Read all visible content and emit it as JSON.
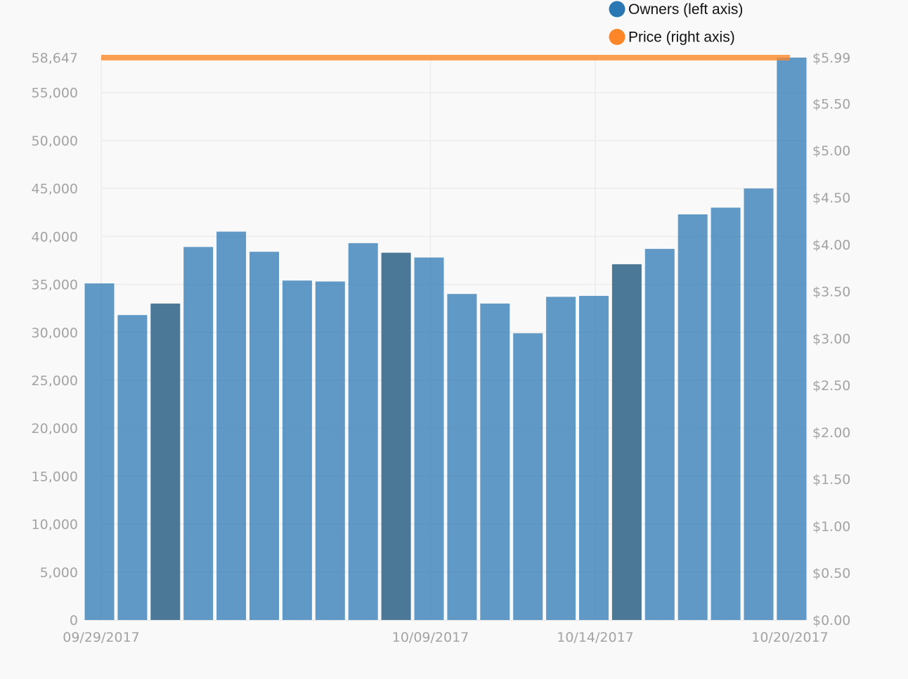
{
  "chart_data": {
    "type": "bar",
    "legend": {
      "placement": "top-right",
      "items": [
        {
          "label": "Owners (left axis)",
          "color": "#2a77b4"
        },
        {
          "label": "Price (right axis)",
          "color": "#fd8628"
        }
      ]
    },
    "x": [
      "09/29/2017",
      "09/30/2017",
      "10/01/2017",
      "10/02/2017",
      "10/03/2017",
      "10/04/2017",
      "10/05/2017",
      "10/06/2017",
      "10/07/2017",
      "10/08/2017",
      "10/09/2017",
      "10/10/2017",
      "10/11/2017",
      "10/12/2017",
      "10/13/2017",
      "10/14/2017",
      "10/15/2017",
      "10/16/2017",
      "10/17/2017",
      "10/18/2017",
      "10/19/2017",
      "10/20/2017"
    ],
    "x_tick_labels": [
      "09/29/2017",
      "10/09/2017",
      "10/14/2017",
      "10/20/2017"
    ],
    "highlighted_x": [
      "10/01/2017",
      "10/08/2017",
      "10/15/2017"
    ],
    "series": [
      {
        "name": "Owners (left axis)",
        "axis": "left",
        "type": "bar",
        "color": "#2a77b4",
        "highlight_color": "#4a7896",
        "values": [
          35100,
          31800,
          33000,
          38900,
          40500,
          38400,
          35400,
          35300,
          39300,
          38300,
          37800,
          34000,
          33000,
          29900,
          33700,
          33800,
          37100,
          38700,
          42300,
          43000,
          45000,
          58647
        ]
      },
      {
        "name": "Price (right axis)",
        "axis": "right",
        "type": "line",
        "color": "#fd8628",
        "values": [
          5.99,
          5.99,
          5.99,
          5.99,
          5.99,
          5.99,
          5.99,
          5.99,
          5.99,
          5.99,
          5.99,
          5.99,
          5.99,
          5.99,
          5.99,
          5.99,
          5.99,
          5.99,
          5.99,
          5.99,
          5.99,
          5.99
        ]
      }
    ],
    "y_left": {
      "range": [
        0,
        58647
      ],
      "ticks": [
        0,
        5000,
        10000,
        15000,
        20000,
        25000,
        30000,
        35000,
        40000,
        45000,
        50000,
        55000,
        58647
      ],
      "tick_labels": [
        "0",
        "5,000",
        "10,000",
        "15,000",
        "20,000",
        "25,000",
        "30,000",
        "35,000",
        "40,000",
        "45,000",
        "50,000",
        "55,000",
        "58,647"
      ]
    },
    "y_right": {
      "range": [
        0,
        5.99
      ],
      "ticks": [
        0,
        0.5,
        1,
        1.5,
        2,
        2.5,
        3,
        3.5,
        4,
        4.5,
        5,
        5.5,
        5.99
      ],
      "tick_labels": [
        "$0.00",
        "$0.50",
        "$1.00",
        "$1.50",
        "$2.00",
        "$2.50",
        "$3.00",
        "$3.50",
        "$4.00",
        "$4.50",
        "$5.00",
        "$5.50",
        "$5.99"
      ]
    },
    "grid": true,
    "title": "",
    "xlabel": "",
    "ylabel": ""
  }
}
